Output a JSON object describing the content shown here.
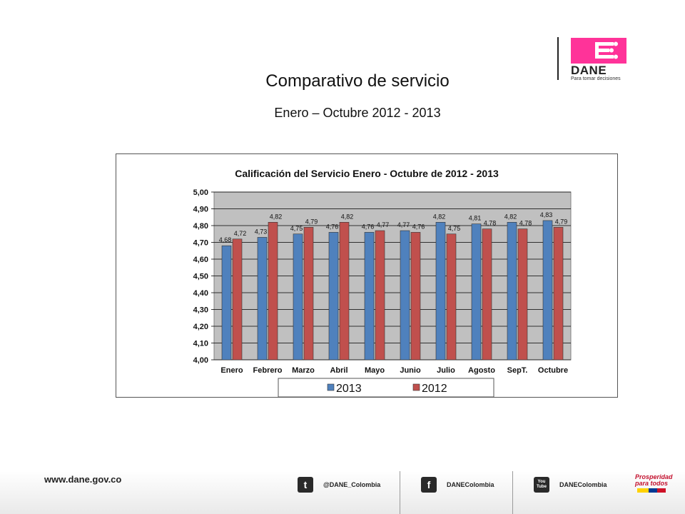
{
  "header": {
    "logo_text": "DANE",
    "logo_tagline": "Para tomar decisiones",
    "brand_color": "#ff3399"
  },
  "slide": {
    "title": "Comparativo de servicio",
    "subtitle": "Enero – Octubre 2012 - 2013"
  },
  "chart_data": {
    "type": "bar",
    "title": "Calificación del Servicio Enero - Octubre de 2012 - 2013",
    "categories": [
      "Enero",
      "Febrero",
      "Marzo",
      "Abril",
      "Mayo",
      "Junio",
      "Julio",
      "Agosto",
      "SepT.",
      "Octubre"
    ],
    "series": [
      {
        "name": "2013",
        "color": "#4f81bd",
        "values": [
          4.68,
          4.73,
          4.75,
          4.76,
          4.76,
          4.77,
          4.82,
          4.81,
          4.82,
          4.83
        ],
        "labels": [
          "4,68",
          "4,73",
          "4,75",
          "4,76",
          "4,76",
          "4,77",
          "4,82",
          "4,81",
          "4,82",
          "4,83"
        ]
      },
      {
        "name": "2012",
        "color": "#c0504d",
        "values": [
          4.72,
          4.82,
          4.79,
          4.82,
          4.77,
          4.76,
          4.75,
          4.78,
          4.78,
          4.79
        ],
        "labels": [
          "4,72",
          "4,82",
          "4,79",
          "4,82",
          "4,77",
          "4,76",
          "4,75",
          "4,78",
          "4,78",
          "4,79"
        ]
      }
    ],
    "ylim": [
      4.0,
      5.0
    ],
    "yticks": [
      "4,00",
      "4,10",
      "4,20",
      "4,30",
      "4,40",
      "4,50",
      "4,60",
      "4,70",
      "4,80",
      "4,90",
      "5,00"
    ],
    "grid": true,
    "legend_position": "bottom"
  },
  "footer": {
    "url": "www.dane.gov.co",
    "twitter": "@DANE_Colombia",
    "facebook": "DANEColombia",
    "youtube": "DANEColombia",
    "youtube_icon_text": "You Tube",
    "prosperidad_line1": "Prosperidad",
    "prosperidad_line2": "para todos"
  }
}
